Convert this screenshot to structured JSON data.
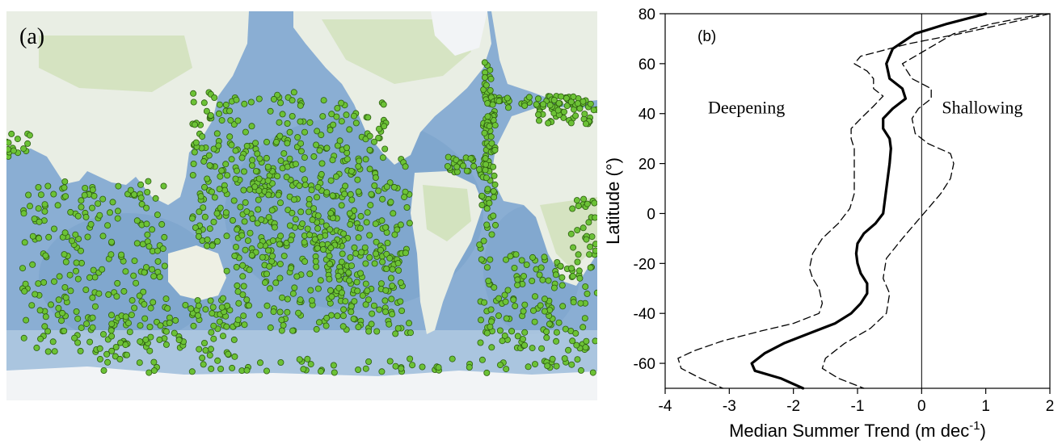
{
  "panel_a": {
    "label": "(a)",
    "colors": {
      "ocean": "#8aaed3",
      "ocean_deep": "#6b93c2",
      "land": "#e9eee4",
      "vegetation": "#cfe0b8",
      "ice": "#f2f4f6",
      "marker_fill": "#6cc236",
      "marker_stroke": "#2c5c10"
    }
  },
  "chart_data": {
    "type": "line",
    "panel_label": "(b)",
    "title": "",
    "xlabel": "Median Summer Trend (m dec",
    "xlabel_sup": "-1",
    "xlabel_close": ")",
    "ylabel": "Latitude (°)",
    "xlim": [
      -4,
      2
    ],
    "ylim": [
      -70,
      80
    ],
    "xticks": [
      -4,
      -3,
      -2,
      -1,
      0,
      1,
      2
    ],
    "yticks": [
      80,
      60,
      40,
      20,
      0,
      -20,
      -40,
      -60
    ],
    "annotations": [
      "Deepening",
      "Shallowing"
    ],
    "reference_line_x": 0,
    "series": [
      {
        "style": "solid-thick",
        "points": [
          [
            1.0,
            80
          ],
          [
            0.4,
            76
          ],
          [
            -0.1,
            72
          ],
          [
            -0.45,
            66
          ],
          [
            -0.55,
            60
          ],
          [
            -0.5,
            54
          ],
          [
            -0.3,
            50
          ],
          [
            -0.25,
            46
          ],
          [
            -0.45,
            42
          ],
          [
            -0.6,
            38
          ],
          [
            -0.6,
            34
          ],
          [
            -0.5,
            30
          ],
          [
            -0.48,
            26
          ],
          [
            -0.5,
            20
          ],
          [
            -0.52,
            16
          ],
          [
            -0.55,
            10
          ],
          [
            -0.58,
            4
          ],
          [
            -0.6,
            0
          ],
          [
            -0.72,
            -4
          ],
          [
            -0.9,
            -8
          ],
          [
            -1.0,
            -12
          ],
          [
            -1.02,
            -16
          ],
          [
            -1.0,
            -20
          ],
          [
            -0.95,
            -24
          ],
          [
            -0.85,
            -28
          ],
          [
            -0.85,
            -32
          ],
          [
            -0.95,
            -36
          ],
          [
            -1.1,
            -40
          ],
          [
            -1.35,
            -44
          ],
          [
            -1.75,
            -48
          ],
          [
            -2.15,
            -52
          ],
          [
            -2.45,
            -56
          ],
          [
            -2.65,
            -60
          ],
          [
            -2.6,
            -63
          ],
          [
            -2.2,
            -66
          ],
          [
            -1.85,
            -70
          ]
        ]
      },
      {
        "style": "dashed",
        "points": [
          [
            2.0,
            80
          ],
          [
            1.3,
            76
          ],
          [
            0.6,
            72
          ],
          [
            -0.2,
            68
          ],
          [
            -0.95,
            63
          ],
          [
            -1.05,
            60
          ],
          [
            -0.85,
            57
          ],
          [
            -0.75,
            54
          ],
          [
            -0.75,
            50
          ],
          [
            -0.6,
            47
          ],
          [
            -0.75,
            43
          ],
          [
            -0.95,
            38
          ],
          [
            -1.1,
            34
          ],
          [
            -1.1,
            30
          ],
          [
            -1.05,
            26
          ],
          [
            -1.05,
            20
          ],
          [
            -1.05,
            14
          ],
          [
            -1.05,
            8
          ],
          [
            -1.12,
            2
          ],
          [
            -1.3,
            -4
          ],
          [
            -1.55,
            -10
          ],
          [
            -1.7,
            -16
          ],
          [
            -1.75,
            -22
          ],
          [
            -1.7,
            -26
          ],
          [
            -1.6,
            -30
          ],
          [
            -1.55,
            -36
          ],
          [
            -1.6,
            -40
          ],
          [
            -2.0,
            -44
          ],
          [
            -2.5,
            -47
          ],
          [
            -3.1,
            -51
          ],
          [
            -3.55,
            -55
          ],
          [
            -3.8,
            -58
          ],
          [
            -3.75,
            -62
          ],
          [
            -3.45,
            -66
          ],
          [
            -3.1,
            -70
          ]
        ]
      },
      {
        "style": "dashed",
        "points": [
          [
            1.9,
            80
          ],
          [
            1.1,
            76
          ],
          [
            0.5,
            72
          ],
          [
            0.1,
            66
          ],
          [
            -0.3,
            60
          ],
          [
            -0.15,
            54
          ],
          [
            0.15,
            50
          ],
          [
            0.15,
            46
          ],
          [
            -0.05,
            42
          ],
          [
            -0.15,
            38
          ],
          [
            -0.1,
            32
          ],
          [
            0.1,
            28
          ],
          [
            0.45,
            24
          ],
          [
            0.5,
            20
          ],
          [
            0.45,
            14
          ],
          [
            0.3,
            8
          ],
          [
            0.1,
            2
          ],
          [
            -0.1,
            -4
          ],
          [
            -0.3,
            -10
          ],
          [
            -0.55,
            -18
          ],
          [
            -0.6,
            -26
          ],
          [
            -0.5,
            -32
          ],
          [
            -0.55,
            -40
          ],
          [
            -0.8,
            -46
          ],
          [
            -1.2,
            -52
          ],
          [
            -1.5,
            -58
          ],
          [
            -1.55,
            -62
          ],
          [
            -1.3,
            -66
          ],
          [
            -0.9,
            -70
          ]
        ]
      }
    ]
  }
}
